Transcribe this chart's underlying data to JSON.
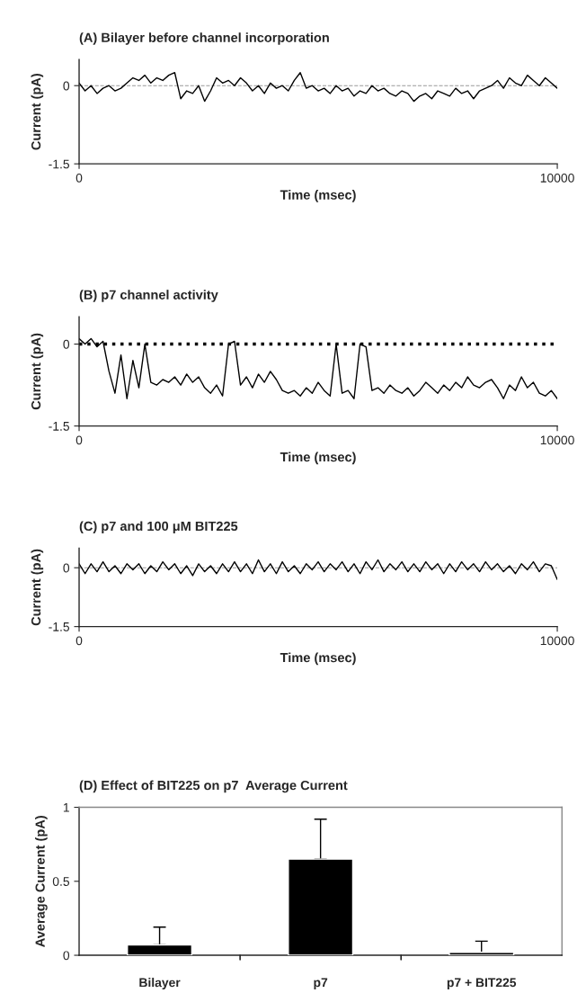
{
  "chart_data": [
    {
      "type": "line",
      "title": "(A) Bilayer before channel incorporation",
      "xlabel": "Time (msec)",
      "ylabel": "Current (pA)",
      "x": [
        0,
        125,
        250,
        375,
        500,
        625,
        750,
        875,
        1000,
        1125,
        1250,
        1375,
        1500,
        1625,
        1750,
        1875,
        2000,
        2125,
        2250,
        2375,
        2500,
        2625,
        2750,
        2875,
        3000,
        3125,
        3250,
        3375,
        3500,
        3625,
        3750,
        3875,
        4000,
        4125,
        4250,
        4375,
        4500,
        4625,
        4750,
        4875,
        5000,
        5125,
        5250,
        5375,
        5500,
        5625,
        5750,
        5875,
        6000,
        6125,
        6250,
        6375,
        6500,
        6625,
        6750,
        6875,
        7000,
        7125,
        7250,
        7375,
        7500,
        7625,
        7750,
        7875,
        8000,
        8125,
        8250,
        8375,
        8500,
        8625,
        8750,
        8875,
        9000,
        9125,
        9250,
        9375,
        9500,
        9625,
        9750,
        9875,
        10000
      ],
      "series": [
        {
          "color": "#000000",
          "values": [
            0.05,
            -0.1,
            0.0,
            -0.15,
            -0.05,
            0.0,
            -0.1,
            -0.05,
            0.05,
            0.15,
            0.1,
            0.2,
            0.05,
            0.15,
            0.1,
            0.2,
            0.25,
            -0.25,
            -0.1,
            -0.15,
            0.0,
            -0.3,
            -0.1,
            0.15,
            0.05,
            0.1,
            0.0,
            0.15,
            0.05,
            -0.1,
            0.0,
            -0.15,
            0.05,
            -0.05,
            0.0,
            -0.1,
            0.1,
            0.25,
            -0.05,
            0.0,
            -0.1,
            -0.05,
            -0.15,
            0.0,
            -0.1,
            -0.05,
            -0.2,
            -0.1,
            -0.15,
            0.0,
            -0.1,
            -0.05,
            -0.15,
            -0.2,
            -0.1,
            -0.15,
            -0.3,
            -0.2,
            -0.15,
            -0.25,
            -0.1,
            -0.15,
            -0.2,
            -0.05,
            -0.15,
            -0.1,
            -0.25,
            -0.1,
            -0.05,
            0.0,
            0.1,
            -0.05,
            0.15,
            0.05,
            0.0,
            0.2,
            0.1,
            0.0,
            0.15,
            0.05,
            -0.05
          ]
        }
      ],
      "xlim": [
        0,
        10000
      ],
      "xticks": [
        0,
        10000
      ],
      "ylim": [
        -1.5,
        0.5
      ],
      "yticks": [
        -1.5,
        0
      ],
      "ref_lines": [
        {
          "axis": "y",
          "value": 0,
          "color": "#999999",
          "line_style": "dashed"
        }
      ]
    },
    {
      "type": "line",
      "title": "(B) p7 channel activity",
      "xlabel": "Time (msec)",
      "ylabel": "Current (pA)",
      "x": [
        0,
        125,
        250,
        375,
        500,
        625,
        750,
        875,
        1000,
        1125,
        1250,
        1375,
        1500,
        1625,
        1750,
        1875,
        2000,
        2125,
        2250,
        2375,
        2500,
        2625,
        2750,
        2875,
        3000,
        3125,
        3250,
        3375,
        3500,
        3625,
        3750,
        3875,
        4000,
        4125,
        4250,
        4375,
        4500,
        4625,
        4750,
        4875,
        5000,
        5125,
        5250,
        5375,
        5500,
        5625,
        5750,
        5875,
        6000,
        6125,
        6250,
        6375,
        6500,
        6625,
        6750,
        6875,
        7000,
        7125,
        7250,
        7375,
        7500,
        7625,
        7750,
        7875,
        8000,
        8125,
        8250,
        8375,
        8500,
        8625,
        8750,
        8875,
        9000,
        9125,
        9250,
        9375,
        9500,
        9625,
        9750,
        9875,
        10000
      ],
      "series": [
        {
          "color": "#000000",
          "values": [
            0.1,
            0.0,
            0.1,
            -0.05,
            0.05,
            -0.5,
            -0.9,
            -0.2,
            -1.0,
            -0.3,
            -0.8,
            0.0,
            -0.7,
            -0.75,
            -0.65,
            -0.7,
            -0.6,
            -0.75,
            -0.55,
            -0.7,
            -0.6,
            -0.8,
            -0.9,
            -0.75,
            -0.95,
            0.0,
            0.05,
            -0.75,
            -0.6,
            -0.8,
            -0.55,
            -0.7,
            -0.5,
            -0.65,
            -0.85,
            -0.9,
            -0.85,
            -0.95,
            -0.8,
            -0.9,
            -0.7,
            -0.85,
            -0.95,
            0.0,
            -0.9,
            -0.85,
            -1.0,
            0.0,
            -0.05,
            -0.85,
            -0.8,
            -0.9,
            -0.75,
            -0.85,
            -0.9,
            -0.8,
            -0.95,
            -0.85,
            -0.7,
            -0.8,
            -0.9,
            -0.75,
            -0.85,
            -0.7,
            -0.8,
            -0.6,
            -0.75,
            -0.8,
            -0.7,
            -0.65,
            -0.8,
            -1.0,
            -0.75,
            -0.85,
            -0.6,
            -0.8,
            -0.7,
            -0.9,
            -0.95,
            -0.85,
            -1.0
          ]
        }
      ],
      "xlim": [
        0,
        10000
      ],
      "xticks": [
        0,
        10000
      ],
      "ylim": [
        -1.5,
        0.5
      ],
      "yticks": [
        -1.5,
        0
      ],
      "ref_lines": [
        {
          "axis": "y",
          "value": 0,
          "color": "#000000",
          "line_style": "dotted"
        }
      ]
    },
    {
      "type": "line",
      "title": "(C) p7 and 100 μM BIT225",
      "xlabel": "Time (msec)",
      "ylabel": "Current (pA)",
      "x": [
        0,
        125,
        250,
        375,
        500,
        625,
        750,
        875,
        1000,
        1125,
        1250,
        1375,
        1500,
        1625,
        1750,
        1875,
        2000,
        2125,
        2250,
        2375,
        2500,
        2625,
        2750,
        2875,
        3000,
        3125,
        3250,
        3375,
        3500,
        3625,
        3750,
        3875,
        4000,
        4125,
        4250,
        4375,
        4500,
        4625,
        4750,
        4875,
        5000,
        5125,
        5250,
        5375,
        5500,
        5625,
        5750,
        5875,
        6000,
        6125,
        6250,
        6375,
        6500,
        6625,
        6750,
        6875,
        7000,
        7125,
        7250,
        7375,
        7500,
        7625,
        7750,
        7875,
        8000,
        8125,
        8250,
        8375,
        8500,
        8625,
        8750,
        8875,
        9000,
        9125,
        9250,
        9375,
        9500,
        9625,
        9750,
        9875,
        10000
      ],
      "series": [
        {
          "color": "#000000",
          "values": [
            0.1,
            -0.15,
            0.1,
            -0.1,
            0.15,
            -0.1,
            0.05,
            -0.15,
            0.1,
            -0.05,
            0.1,
            -0.15,
            0.05,
            -0.1,
            0.15,
            -0.05,
            0.1,
            -0.15,
            0.05,
            -0.2,
            0.1,
            -0.1,
            0.05,
            -0.15,
            0.1,
            -0.1,
            0.15,
            -0.1,
            0.1,
            -0.15,
            0.2,
            -0.1,
            0.1,
            -0.15,
            0.15,
            -0.1,
            0.05,
            -0.15,
            0.1,
            -0.05,
            0.15,
            -0.1,
            0.1,
            -0.05,
            0.15,
            -0.1,
            0.1,
            -0.15,
            0.15,
            -0.05,
            0.2,
            -0.1,
            0.1,
            -0.05,
            0.15,
            -0.1,
            0.1,
            -0.1,
            0.15,
            -0.05,
            0.1,
            -0.15,
            0.1,
            -0.1,
            0.15,
            -0.05,
            0.1,
            -0.1,
            0.15,
            -0.05,
            0.1,
            -0.1,
            0.05,
            -0.15,
            0.1,
            -0.05,
            0.15,
            -0.1,
            0.1,
            0.05,
            -0.3
          ]
        }
      ],
      "xlim": [
        0,
        10000
      ],
      "xticks": [
        0,
        10000
      ],
      "ylim": [
        -1.5,
        0.5
      ],
      "yticks": [
        -1.5,
        0
      ],
      "ref_lines": [
        {
          "axis": "y",
          "value": 0,
          "color": "#999999",
          "line_style": "dashed"
        }
      ]
    },
    {
      "type": "bar",
      "title": "(D) Effect of BIT225 on p7  Average Current",
      "ylabel": "Average Current (pA)",
      "categories": [
        "Bilayer",
        "p7",
        "p7 + BIT225"
      ],
      "values": [
        0.07,
        0.65,
        0.02
      ],
      "color": "#000000",
      "errors": [
        [
          0.07,
          0.19
        ],
        [
          0.65,
          0.92
        ],
        [
          0.02,
          0.095
        ]
      ],
      "ylim": [
        0,
        1
      ],
      "yticks": [
        0,
        0.5,
        1
      ]
    }
  ]
}
